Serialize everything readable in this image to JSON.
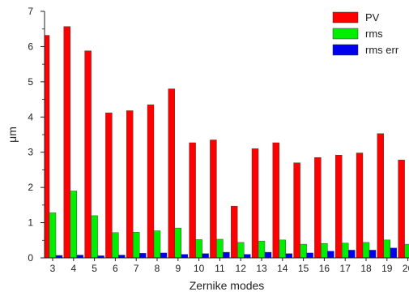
{
  "chart_data": {
    "type": "bar",
    "xlabel": "Zernike modes",
    "ylabel": "μm",
    "ylim": [
      0,
      7
    ],
    "yticks": [
      0,
      1,
      2,
      3,
      4,
      5,
      6,
      7
    ],
    "grid": false,
    "legend_position": "top-right",
    "categories": [
      "3",
      "4",
      "5",
      "6",
      "7",
      "8",
      "9",
      "10",
      "11",
      "12",
      "13",
      "14",
      "15",
      "16",
      "17",
      "18",
      "19",
      "20"
    ],
    "series": [
      {
        "name": "PV",
        "color": "#ff0000",
        "values": [
          6.32,
          6.57,
          5.88,
          4.12,
          4.18,
          4.35,
          4.8,
          3.27,
          3.35,
          1.47,
          3.1,
          3.27,
          2.7,
          2.85,
          2.92,
          2.98,
          3.53,
          2.78
        ]
      },
      {
        "name": "rms",
        "color": "#00ee00",
        "values": [
          1.28,
          1.9,
          1.2,
          0.72,
          0.73,
          0.77,
          0.85,
          0.52,
          0.53,
          0.44,
          0.48,
          0.51,
          0.39,
          0.41,
          0.42,
          0.44,
          0.51,
          0.39
        ]
      },
      {
        "name": "rms err",
        "color": "#0000ee",
        "values": [
          0.07,
          0.08,
          0.06,
          0.08,
          0.13,
          0.14,
          0.1,
          0.12,
          0.16,
          0.1,
          0.16,
          0.12,
          0.14,
          0.19,
          0.22,
          0.22,
          0.28,
          0.14
        ]
      }
    ]
  }
}
